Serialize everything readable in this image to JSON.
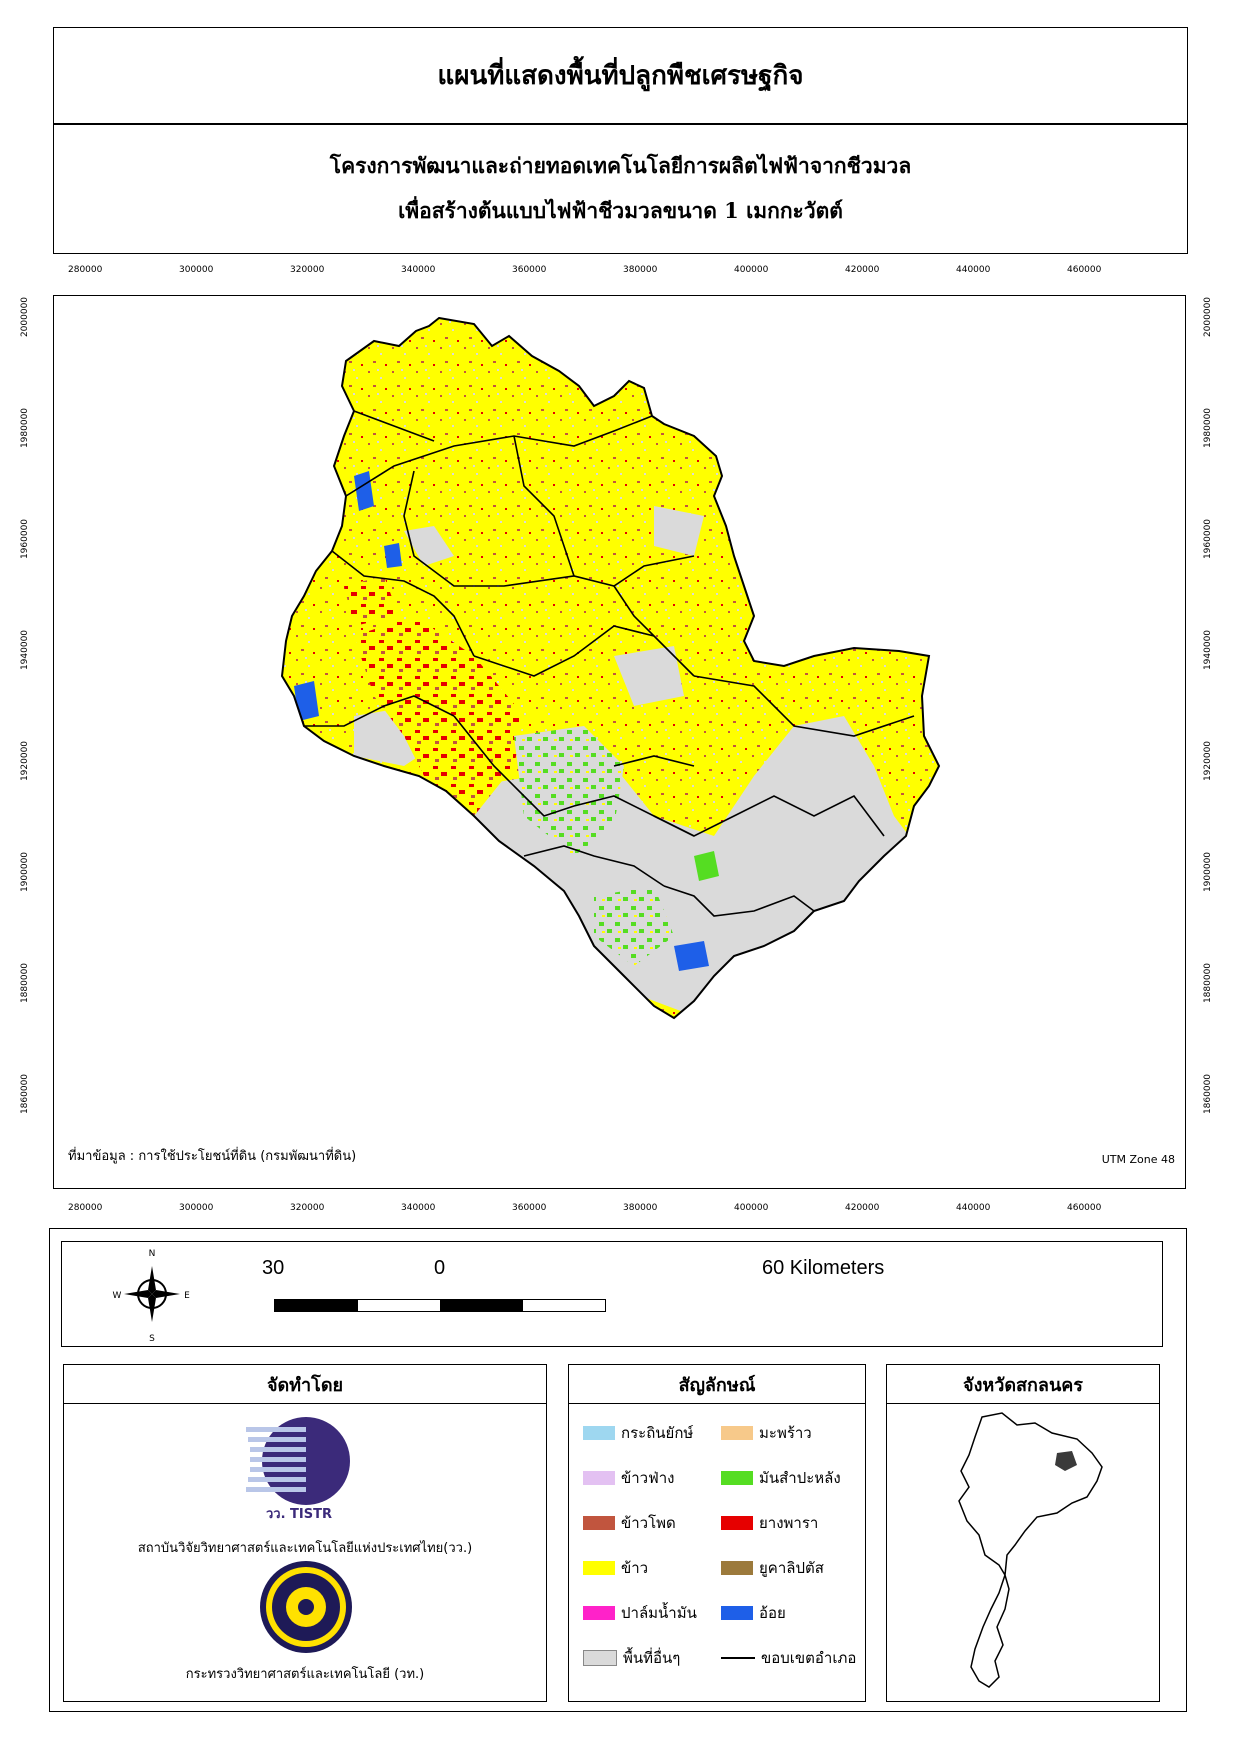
{
  "title": "แผนที่แสดงพื้นที่ปลูกพืชเศรษฐกิจ",
  "subtitle_line1": "โครงการพัฒนาและถ่ายทอดเทคโนโลยีการผลิตไฟฟ้าจากชีวมวล",
  "subtitle_line2": "เพื่อสร้างต้นแบบไฟฟ้าชีวมวลขนาด 1 เมกกะวัตต์",
  "x_ticks": [
    "280000",
    "300000",
    "320000",
    "340000",
    "360000",
    "380000",
    "400000",
    "420000",
    "440000",
    "460000"
  ],
  "y_ticks": [
    "2000000",
    "1980000",
    "1960000",
    "1940000",
    "1920000",
    "1900000",
    "1880000",
    "1860000"
  ],
  "source_text": "ที่มาข้อมูล : การใช้ประโยชน์ที่ดิน  (กรมพัฒนาที่ดิน)",
  "utm_zone": "UTM Zone 48",
  "compass": {
    "n": "N",
    "s": "S",
    "e": "E",
    "w": "W"
  },
  "scale": {
    "left": "30",
    "zero": "0",
    "right": "60 Kilometers"
  },
  "producer": {
    "heading": "จัดทำโดย",
    "logo1_text": "วว. TISTR",
    "org1": "สถาบันวิจัยวิทยาศาสตร์และเทคโนโลยีแห่งประเทศไทย(วว.)",
    "org2": "กระทรวงวิทยาศาสตร์และเทคโนโลยี (วท.)"
  },
  "legend": {
    "heading": "สัญลักษณ์",
    "items": [
      {
        "label": "กระถินยักษ์",
        "color": "#9ed7f0"
      },
      {
        "label": "มะพร้าว",
        "color": "#f7c98a"
      },
      {
        "label": "ข้าวฟ่าง",
        "color": "#e3c1f2"
      },
      {
        "label": "มันสำปะหลัง",
        "color": "#55dd22"
      },
      {
        "label": "ข้าวโพด",
        "color": "#c1553e"
      },
      {
        "label": "ยางพารา",
        "color": "#e60000"
      },
      {
        "label": "ข้าว",
        "color": "#ffff00"
      },
      {
        "label": "ยูคาลิปตัส",
        "color": "#9c7a3c"
      },
      {
        "label": "ปาล์มน้ำมัน",
        "color": "#ff22c9"
      },
      {
        "label": "อ้อย",
        "color": "#1e5fe8"
      },
      {
        "label": "พื้นที่อื่นๆ",
        "color": "#dadada"
      },
      {
        "label": "ขอบเขตอำเภอ",
        "color": "#000000"
      }
    ]
  },
  "locator": {
    "heading": "จังหวัดสกลนคร"
  }
}
